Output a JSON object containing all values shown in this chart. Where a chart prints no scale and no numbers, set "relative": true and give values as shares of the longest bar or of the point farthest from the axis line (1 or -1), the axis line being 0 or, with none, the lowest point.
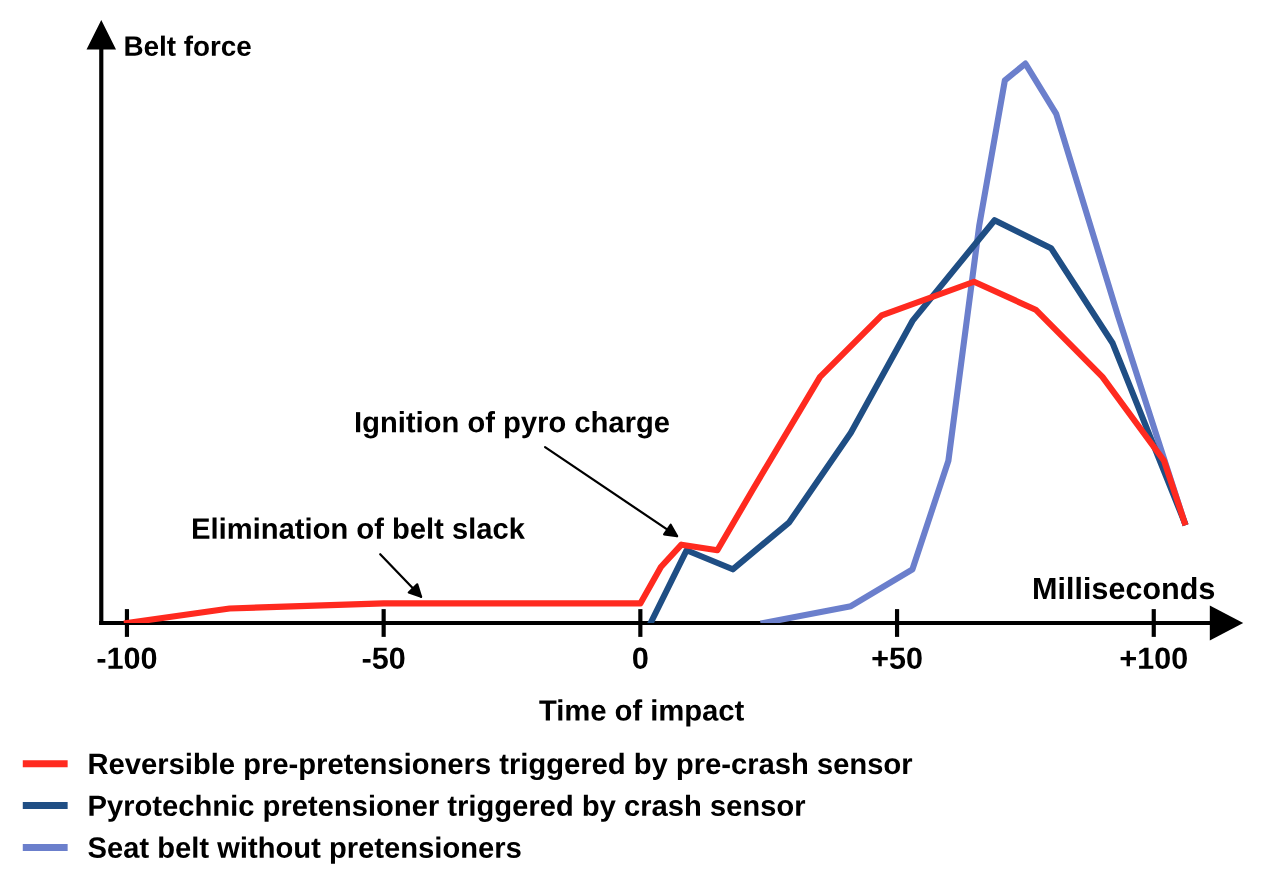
{
  "chart_data": {
    "type": "line",
    "relative": true,
    "xlabel": "Milliseconds",
    "ylabel": "Belt force",
    "xlim": [
      -105,
      112
    ],
    "xticks": [
      -100,
      -50,
      0,
      {
        "value": 50,
        "label": "+50"
      },
      {
        "value": 100,
        "label": "+100"
      }
    ],
    "legend": "bottom",
    "grid": false,
    "marker": "none",
    "line_style": "solid",
    "annotations": [
      {
        "text": "Ignition of pyro charge",
        "x": 8,
        "y": 0.15
      },
      {
        "text": "Elimination of belt slack",
        "x": -42,
        "y": 0.04
      },
      "Time of impact"
    ],
    "series": [
      {
        "name": "Reversible pre-pretensioners triggered by pre-crash sensor",
        "color": "#ff2a1f",
        "x": [
          -100,
          -80,
          -50,
          0,
          4,
          8,
          15,
          22,
          35,
          47,
          65,
          77,
          90,
          102,
          106
        ],
        "values": [
          0,
          0.026,
          0.035,
          0.035,
          0.1,
          0.14,
          0.13,
          0.24,
          0.44,
          0.55,
          0.61,
          0.56,
          0.44,
          0.29,
          0.18
        ]
      },
      {
        "name": "Pyrotechnic pretensioner triggered by crash sensor",
        "color": "#1f4e84",
        "x": [
          2,
          9,
          18,
          29,
          41,
          53,
          69,
          80,
          92,
          106
        ],
        "values": [
          0,
          0.13,
          0.096,
          0.18,
          0.34,
          0.54,
          0.72,
          0.67,
          0.5,
          0.18
        ]
      },
      {
        "name": "Seat belt without pretensioners",
        "color": "#6b7fcc",
        "x": [
          24,
          41,
          53,
          60,
          66,
          71,
          75,
          81,
          93,
          106
        ],
        "values": [
          0,
          0.03,
          0.096,
          0.29,
          0.71,
          0.97,
          1,
          0.91,
          0.55,
          0.18
        ]
      }
    ]
  }
}
